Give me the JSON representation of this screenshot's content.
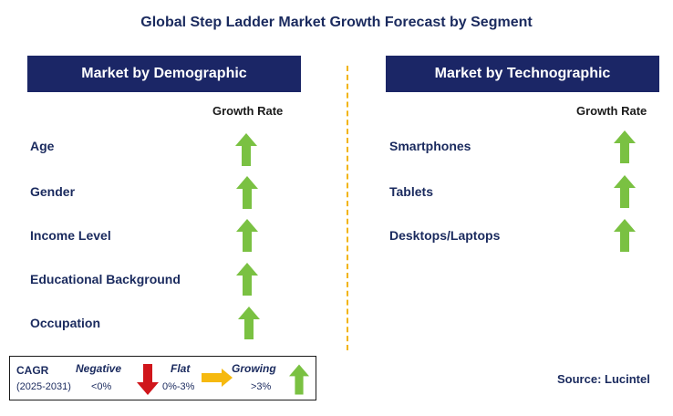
{
  "title": "Global Step Ladder Market Growth Forecast by Segment",
  "left_panel": {
    "header": "Market by Demographic",
    "growth_label": "Growth Rate",
    "items": [
      {
        "label": "Age",
        "trend": "growing"
      },
      {
        "label": "Gender",
        "trend": "growing"
      },
      {
        "label": "Income Level",
        "trend": "growing"
      },
      {
        "label": "Educational Background",
        "trend": "growing"
      },
      {
        "label": "Occupation",
        "trend": "growing"
      }
    ]
  },
  "right_panel": {
    "header": "Market by Technographic",
    "growth_label": "Growth Rate",
    "items": [
      {
        "label": "Smartphones",
        "trend": "growing"
      },
      {
        "label": "Tablets",
        "trend": "growing"
      },
      {
        "label": "Desktops/Laptops",
        "trend": "growing"
      }
    ]
  },
  "legend": {
    "cagr": "CAGR",
    "period": "(2025-2031)",
    "negative": "Negative",
    "negative_range": "<0%",
    "flat": "Flat",
    "flat_range": "0%-3%",
    "growing": "Growing",
    "growing_range": ">3%"
  },
  "source": "Source: Lucintel",
  "colors": {
    "header_bg": "#1b2666",
    "growing": "#7ac142",
    "negative": "#d0161b",
    "flat": "#f6b90f",
    "divider": "#f2b40f"
  }
}
